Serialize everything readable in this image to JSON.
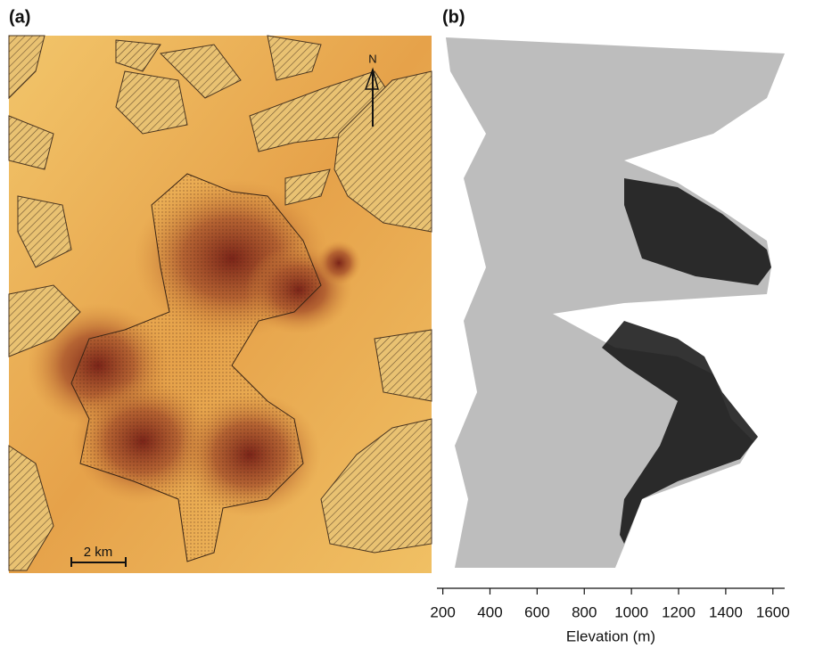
{
  "chart_data": [
    {
      "type": "map",
      "title": "(a)",
      "north_label": "N",
      "scale_label": "2 km"
    },
    {
      "type": "scatter",
      "title": "(b)",
      "x_label": "Elevation (m)",
      "xlim": [
        175,
        1650
      ],
      "xticks": [
        200,
        400,
        600,
        800,
        1000,
        1200,
        1400,
        1600
      ]
    }
  ]
}
